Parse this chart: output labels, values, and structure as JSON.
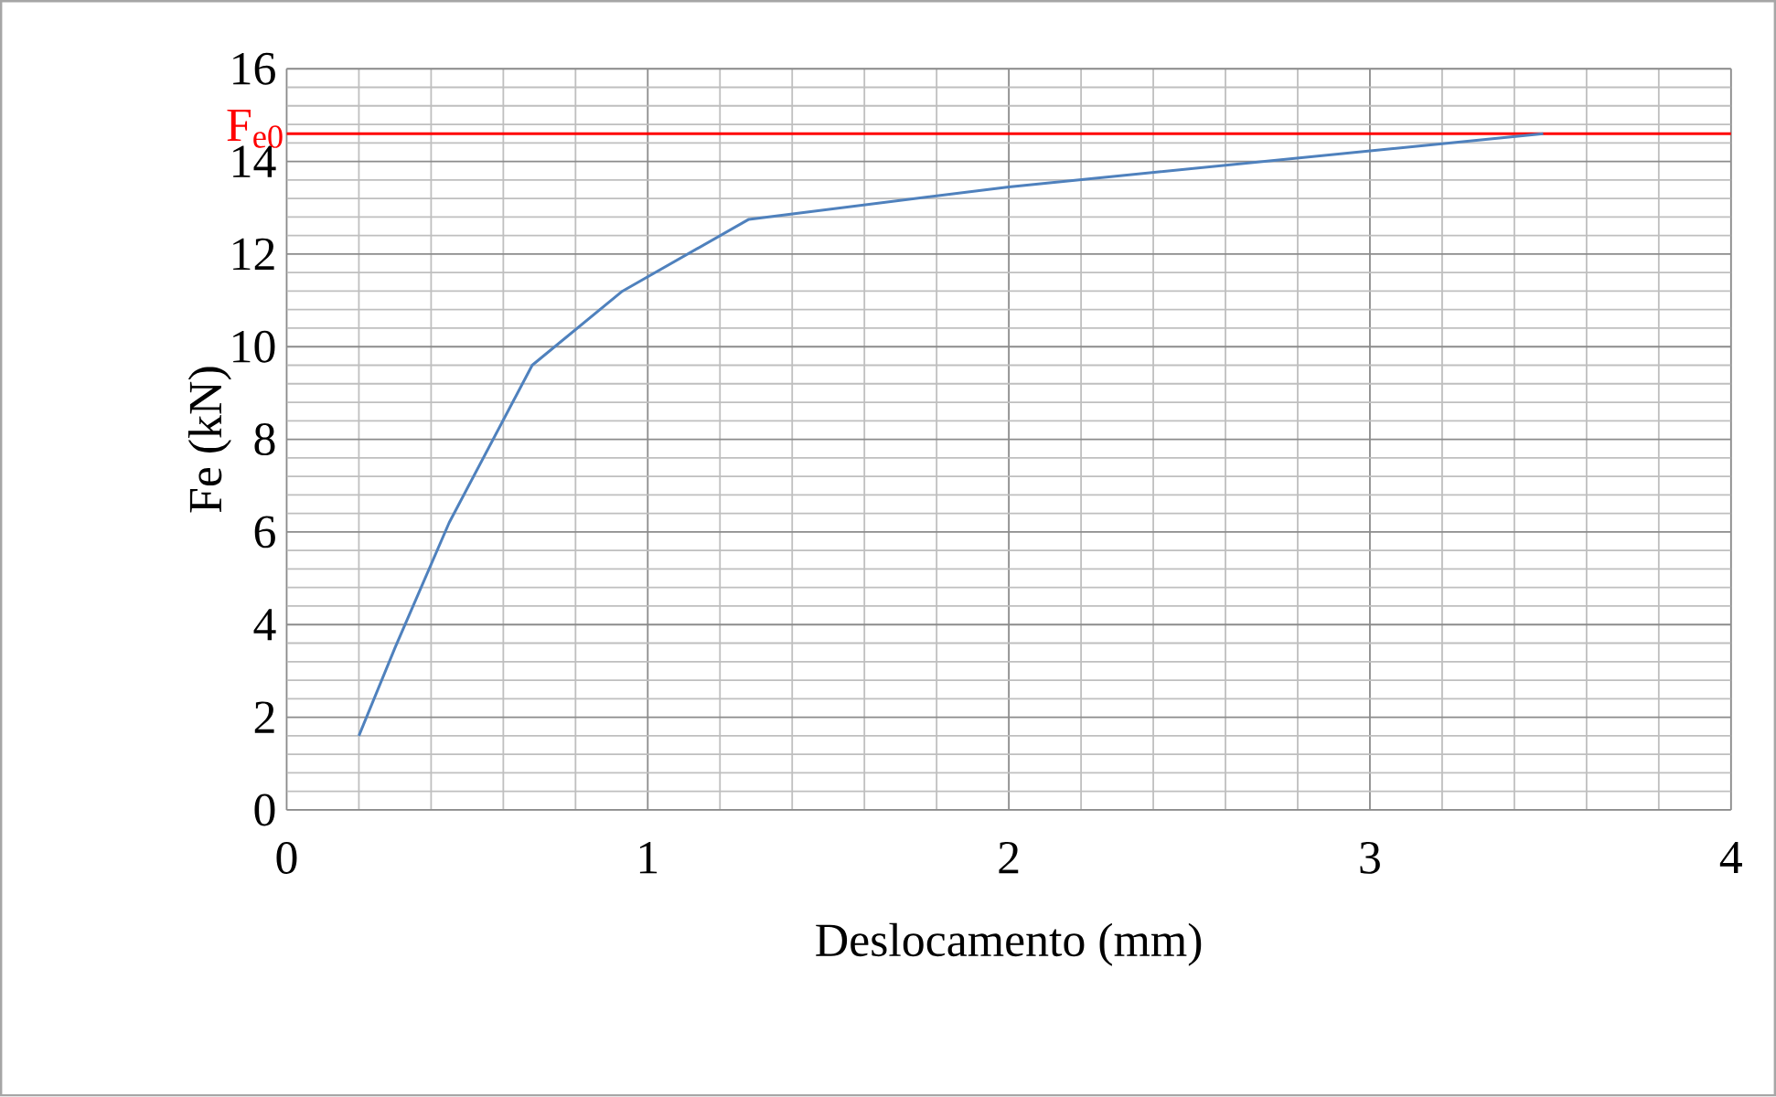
{
  "chart_data": {
    "type": "line",
    "xlabel": "Deslocamento (mm)",
    "ylabel": "Fe (kN)",
    "xlim": [
      0,
      4
    ],
    "ylim": [
      0,
      16
    ],
    "xticks": [
      0,
      1,
      2,
      3,
      4
    ],
    "yticks": [
      0,
      2,
      4,
      6,
      8,
      10,
      12,
      14,
      16
    ],
    "grid": true,
    "series": [
      {
        "color": "#4f81bd",
        "x": [
          0.2,
          0.3,
          0.45,
          0.68,
          0.93,
          1.28,
          2.0,
          3.48
        ],
        "values": [
          1.6,
          3.5,
          6.2,
          9.6,
          11.2,
          12.75,
          13.45,
          14.6
        ]
      }
    ],
    "ref_lines": [
      {
        "axis": "y",
        "value": 14.6,
        "label": "F$_{e0}$",
        "color": "#ff0000"
      }
    ]
  }
}
